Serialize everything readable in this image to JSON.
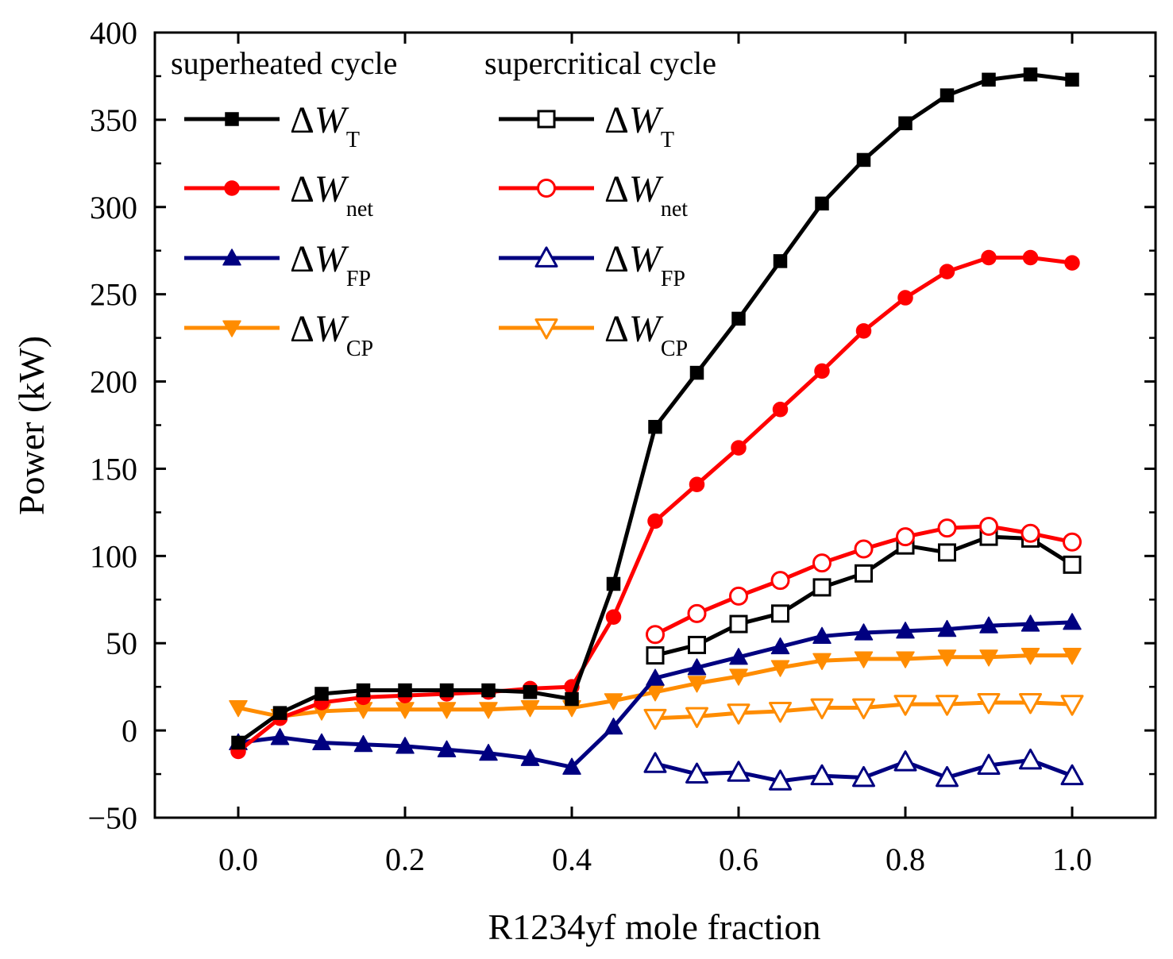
{
  "chart_data": {
    "type": "line",
    "xlabel": "R1234yf mole fraction",
    "ylabel": "Power (kW)",
    "xlim": [
      -0.1,
      1.1
    ],
    "ylim": [
      -50,
      400
    ],
    "xticks": [
      0.0,
      0.2,
      0.4,
      0.6,
      0.8,
      1.0
    ],
    "xtick_labels": [
      "0.0",
      "0.2",
      "0.4",
      "0.6",
      "0.8",
      "1.0"
    ],
    "yticks": [
      -50,
      0,
      50,
      100,
      150,
      200,
      250,
      300,
      350,
      400
    ],
    "ytick_labels": [
      "−50",
      "0",
      "50",
      "100",
      "150",
      "200",
      "250",
      "300",
      "350",
      "400"
    ],
    "legend": {
      "placement": "top-left",
      "headers": [
        "superheated cycle",
        "supercritical cycle"
      ]
    },
    "series": [
      {
        "name": "ΔW_T (superheated)",
        "group": "superheated cycle",
        "delta": "Δ",
        "symbol": "W",
        "subscript": "T",
        "color": "#000000",
        "marker": "square",
        "filled": true,
        "x": [
          0.0,
          0.05,
          0.1,
          0.15,
          0.2,
          0.25,
          0.3,
          0.35,
          0.4,
          0.45,
          0.5,
          0.55,
          0.6,
          0.65,
          0.7,
          0.75,
          0.8,
          0.85,
          0.9,
          0.95,
          1.0
        ],
        "values": [
          -7,
          10,
          21,
          23,
          23,
          23,
          23,
          22,
          18,
          84,
          174,
          205,
          236,
          269,
          302,
          327,
          348,
          364,
          373,
          376,
          373
        ]
      },
      {
        "name": "ΔW_net (superheated)",
        "group": "superheated cycle",
        "delta": "Δ",
        "symbol": "W",
        "subscript": "net",
        "color": "#ff0000",
        "marker": "circle",
        "filled": true,
        "x": [
          0.0,
          0.05,
          0.1,
          0.15,
          0.2,
          0.25,
          0.3,
          0.35,
          0.4,
          0.45,
          0.5,
          0.55,
          0.6,
          0.65,
          0.7,
          0.75,
          0.8,
          0.85,
          0.9,
          0.95,
          1.0
        ],
        "values": [
          -12,
          7,
          16,
          19,
          20,
          21,
          22,
          24,
          25,
          65,
          120,
          141,
          162,
          184,
          206,
          229,
          248,
          263,
          271,
          271,
          268
        ]
      },
      {
        "name": "ΔW_FP (superheated)",
        "group": "superheated cycle",
        "delta": "Δ",
        "symbol": "W",
        "subscript": "FP",
        "color": "#000080",
        "marker": "triangle-up",
        "filled": true,
        "x": [
          0.0,
          0.05,
          0.1,
          0.15,
          0.2,
          0.25,
          0.3,
          0.35,
          0.4,
          0.45,
          0.5,
          0.55,
          0.6,
          0.65,
          0.7,
          0.75,
          0.8,
          0.85,
          0.9,
          0.95,
          1.0
        ],
        "values": [
          -7,
          -4,
          -7,
          -8,
          -9,
          -11,
          -13,
          -16,
          -21,
          2,
          30,
          36,
          42,
          48,
          54,
          56,
          57,
          58,
          60,
          61,
          62
        ]
      },
      {
        "name": "ΔW_CP (superheated)",
        "group": "superheated cycle",
        "delta": "Δ",
        "symbol": "W",
        "subscript": "CP",
        "color": "#ff8c00",
        "marker": "triangle-down",
        "filled": true,
        "x": [
          0.0,
          0.05,
          0.1,
          0.15,
          0.2,
          0.25,
          0.3,
          0.35,
          0.4,
          0.45,
          0.5,
          0.55,
          0.6,
          0.65,
          0.7,
          0.75,
          0.8,
          0.85,
          0.9,
          0.95,
          1.0
        ],
        "values": [
          13,
          8,
          11,
          12,
          12,
          12,
          12,
          13,
          13,
          17,
          22,
          27,
          31,
          36,
          40,
          41,
          41,
          42,
          42,
          43,
          43
        ]
      },
      {
        "name": "ΔW_T (supercritical)",
        "group": "supercritical cycle",
        "delta": "Δ",
        "symbol": "W",
        "subscript": "T",
        "color": "#000000",
        "marker": "square",
        "filled": false,
        "x": [
          0.5,
          0.55,
          0.6,
          0.65,
          0.7,
          0.75,
          0.8,
          0.85,
          0.9,
          0.95,
          1.0
        ],
        "values": [
          43,
          49,
          61,
          67,
          82,
          90,
          106,
          102,
          111,
          110,
          95
        ]
      },
      {
        "name": "ΔW_net (supercritical)",
        "group": "supercritical cycle",
        "delta": "Δ",
        "symbol": "W",
        "subscript": "net",
        "color": "#ff0000",
        "marker": "circle",
        "filled": false,
        "x": [
          0.5,
          0.55,
          0.6,
          0.65,
          0.7,
          0.75,
          0.8,
          0.85,
          0.9,
          0.95,
          1.0
        ],
        "values": [
          55,
          67,
          77,
          86,
          96,
          104,
          111,
          116,
          117,
          113,
          108
        ]
      },
      {
        "name": "ΔW_FP (supercritical)",
        "group": "supercritical cycle",
        "delta": "Δ",
        "symbol": "W",
        "subscript": "FP",
        "color": "#000080",
        "marker": "triangle-up",
        "filled": false,
        "x": [
          0.5,
          0.55,
          0.6,
          0.65,
          0.7,
          0.75,
          0.8,
          0.85,
          0.9,
          0.95,
          1.0
        ],
        "values": [
          -19,
          -25,
          -24,
          -29,
          -26,
          -27,
          -18,
          -27,
          -20,
          -17,
          -26
        ]
      },
      {
        "name": "ΔW_CP (supercritical)",
        "group": "supercritical cycle",
        "delta": "Δ",
        "symbol": "W",
        "subscript": "CP",
        "color": "#ff8c00",
        "marker": "triangle-down",
        "filled": false,
        "x": [
          0.5,
          0.55,
          0.6,
          0.65,
          0.7,
          0.75,
          0.8,
          0.85,
          0.9,
          0.95,
          1.0
        ],
        "values": [
          7,
          8,
          10,
          11,
          13,
          13,
          15,
          15,
          16,
          16,
          15
        ]
      }
    ]
  }
}
